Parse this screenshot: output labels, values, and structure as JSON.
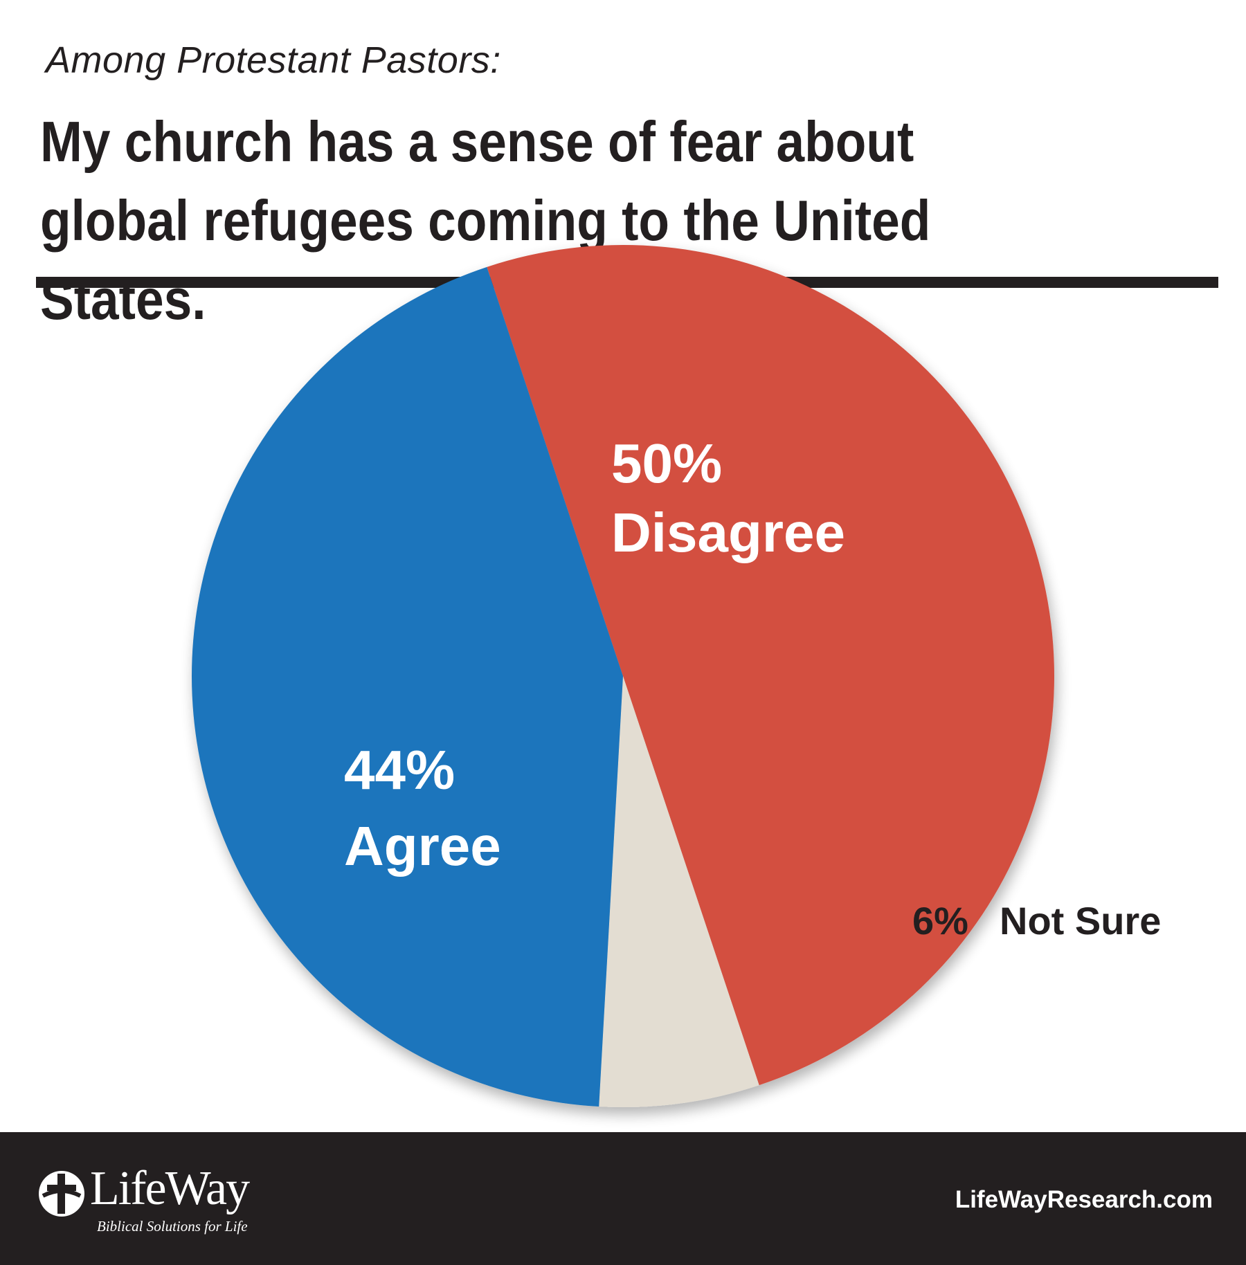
{
  "header": {
    "subtitle": "Among Protestant Pastors:",
    "title": "My church has a sense of fear about global refugees coming to the United States."
  },
  "chart_data": {
    "type": "pie",
    "slices": [
      {
        "pct_label": "50%",
        "label": "Disagree",
        "value": 50,
        "color": "#d35040",
        "label_color": "#ffffff"
      },
      {
        "pct_label": "6%",
        "label": "Not Sure",
        "value": 6,
        "color": "#e3ddd2",
        "label_color": "#231f20"
      },
      {
        "pct_label": "44%",
        "label": "Agree",
        "value": 44,
        "color": "#1c75bc",
        "label_color": "#ffffff"
      }
    ]
  },
  "footer": {
    "logo_text": "LifeWay",
    "logo_tagline": "Biblical Solutions for Life",
    "website": "LifeWayResearch.com"
  }
}
